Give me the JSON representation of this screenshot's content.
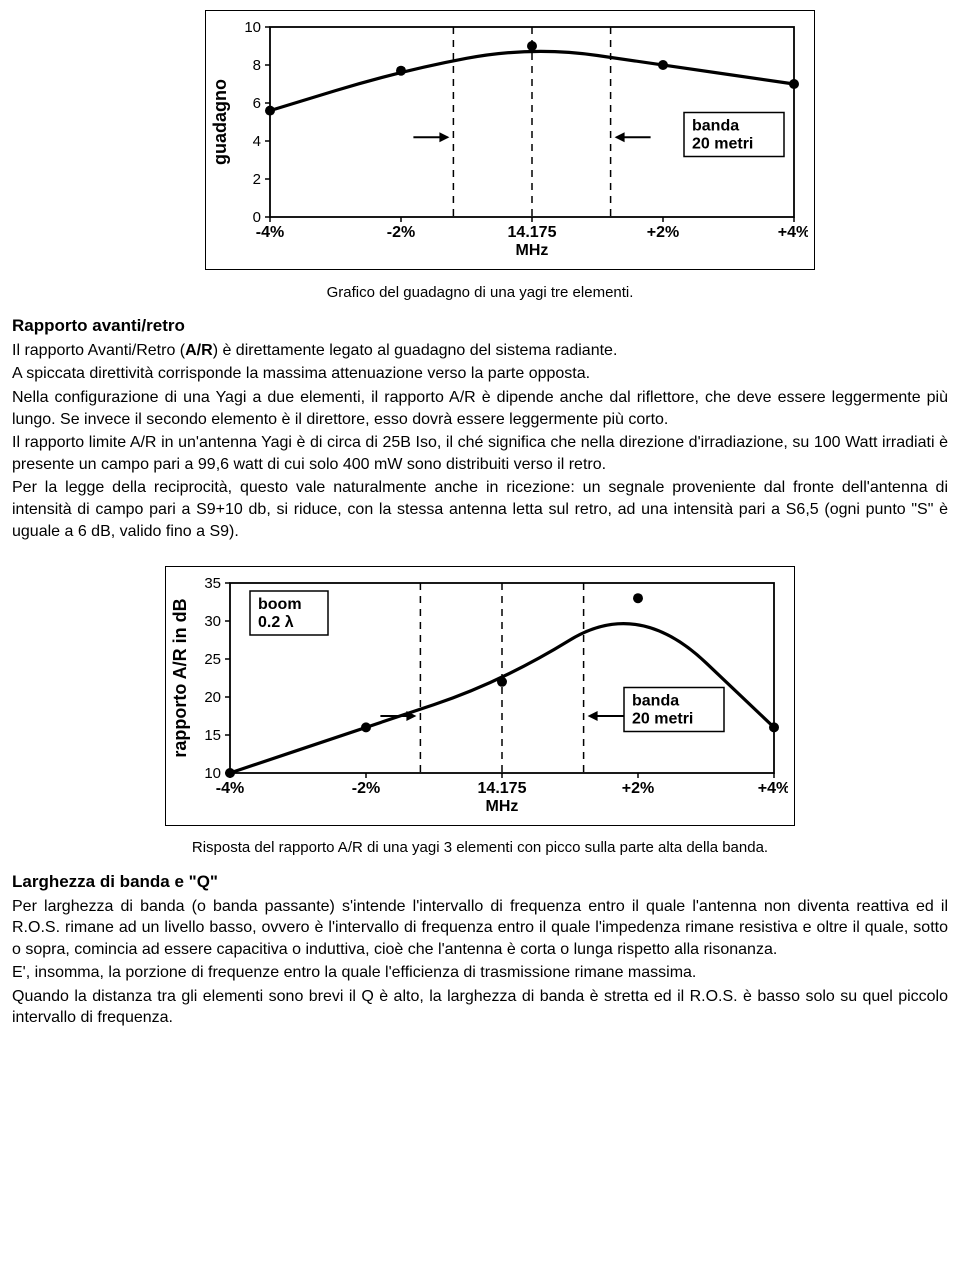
{
  "chart1": {
    "type": "line",
    "ylabel": "guadagno",
    "xlabel_center": "14.175",
    "xlabel_unit": "MHz",
    "xticks": [
      "-4%",
      "-2%",
      "14.175",
      "+2%",
      "+4%"
    ],
    "yticks": [
      0,
      2,
      4,
      6,
      8,
      10
    ],
    "ylim": [
      0,
      10
    ],
    "points": [
      {
        "x": 0,
        "y": 5.6
      },
      {
        "x": 1,
        "y": 7.7
      },
      {
        "x": 2,
        "y": 9.0
      },
      {
        "x": 3,
        "y": 8.0
      },
      {
        "x": 4,
        "y": 7.0
      }
    ],
    "band_label_l1": "banda",
    "band_label_l2": "20 metri",
    "band_x0": 1.4,
    "band_x1": 2.6,
    "line_color": "#000000",
    "line_width": 3.2,
    "marker_size": 5,
    "grid": false,
    "caption": "Grafico del guadagno di una yagi tre elementi."
  },
  "section1": {
    "heading": "Rapporto avanti/retro",
    "p1a": "Il rapporto Avanti/Retro (",
    "p1b": "A/R",
    "p1c": ") è direttamente legato al guadagno del sistema radiante.",
    "p2": "A spiccata direttività corrisponde la massima attenuazione verso la parte opposta.",
    "p3": "Nella configurazione di una Yagi a due elementi, il rapporto A/R è dipende anche dal riflettore, che deve essere leggermente più lungo. Se invece il secondo elemento è il direttore, esso dovrà essere leggermente più corto.",
    "p4": "Il rapporto limite A/R in un'antenna Yagi è di circa di 25B Iso, il ché significa che nella direzione d'irradiazione, su 100 Watt irradiati è presente un campo pari a 99,6 watt di cui solo 400 mW sono distribuiti verso il retro.",
    "p5": "Per la legge della reciprocità, questo vale naturalmente anche in ricezione: un segnale proveniente dal fronte dell'antenna di intensità di campo pari a S9+10 db, si riduce, con la stessa antenna letta sul retro, ad una intensità pari a S6,5 (ogni punto \"S\" è uguale a 6 dB, valido fino a S9)."
  },
  "chart2": {
    "type": "line",
    "ylabel": "rapporto A/R in dB",
    "xlabel_center": "14.175",
    "xlabel_unit": "MHz",
    "xticks": [
      "-4%",
      "-2%",
      "14.175",
      "+2%",
      "+4%"
    ],
    "yticks": [
      10,
      15,
      20,
      25,
      30,
      35
    ],
    "ylim": [
      10,
      35
    ],
    "points": [
      {
        "x": 0,
        "y": 10.0
      },
      {
        "x": 1,
        "y": 16.0
      },
      {
        "x": 2,
        "y": 22.0
      },
      {
        "x": 3,
        "y": 33.0
      },
      {
        "x": 4,
        "y": 16.0
      }
    ],
    "band_label_l1": "banda",
    "band_label_l2": "20 metri",
    "band_x0": 1.4,
    "band_x1": 2.6,
    "note_l1": "boom",
    "note_l2": "0.2 λ",
    "line_color": "#000000",
    "line_width": 3.2,
    "marker_size": 5,
    "caption": "Risposta del rapporto A/R di una yagi 3 elementi con picco sulla parte alta della banda."
  },
  "section2": {
    "heading": "Larghezza di banda e \"Q\"",
    "p1": "Per larghezza di banda (o banda passante) s'intende l'intervallo di frequenza entro il quale l'antenna non diventa reattiva ed il  R.O.S. rimane ad un livello basso, ovvero è l'intervallo di frequenza entro il quale l'impedenza rimane resistiva e oltre il quale, sotto o sopra, comincia ad essere capacitiva o induttiva, cioè che l'antenna è corta o lunga rispetto alla risonanza.",
    "p2": "E', insomma, la porzione di frequenze entro la quale l'efficienza di trasmissione rimane massima.",
    "p3": "Quando la distanza tra gli elementi sono brevi il Q è alto, la larghezza di banda è stretta ed il R.O.S. è basso solo su quel piccolo intervallo di frequenza."
  }
}
